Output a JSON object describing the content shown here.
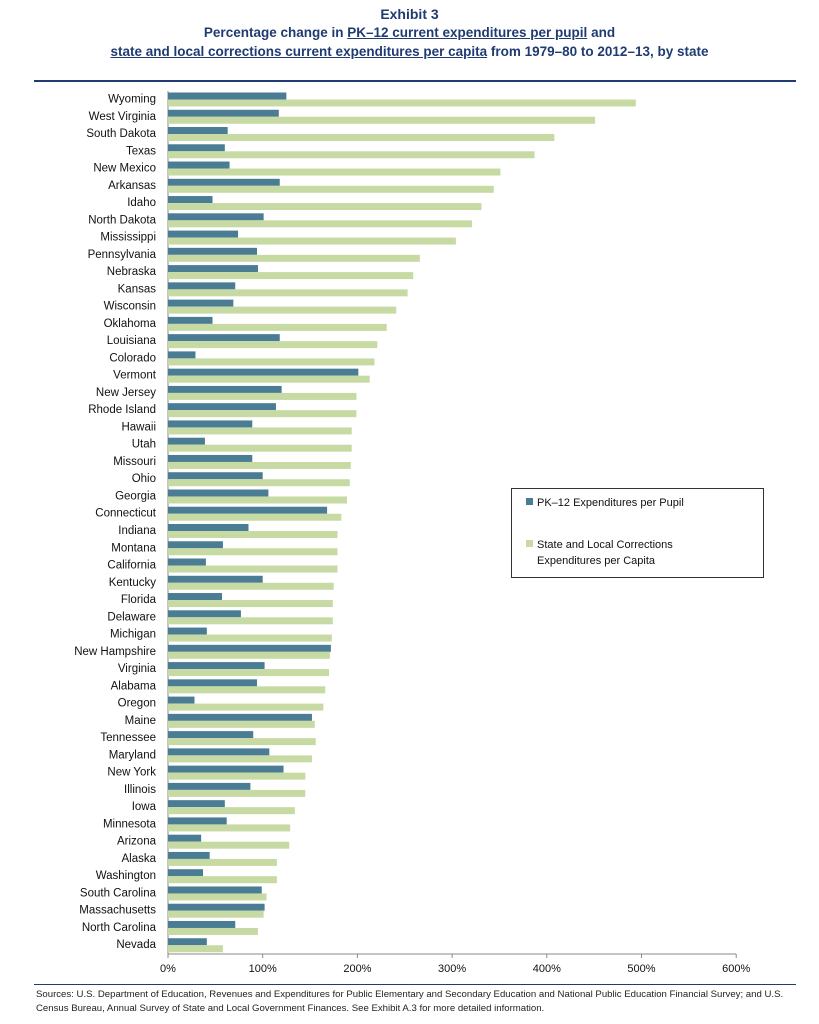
{
  "header": {
    "exhibit": "Exhibit 3",
    "line1_pre": "Percentage change in ",
    "line1_link": "PK–12 current expenditures per pupil",
    "line1_post": " and",
    "line2_link": "state and local corrections current expenditures per capita",
    "line2_post": " from 1979–80 to 2012–13, by state"
  },
  "colors": {
    "pk12": "#4a7c93",
    "corrections": "#c8daa4",
    "accent": "#1f3b72"
  },
  "legend": {
    "pk12_label": "PK–12 Expenditures per Pupil",
    "corr_label_line1": "State and Local Corrections",
    "corr_label_line2": "Expenditures per Capita"
  },
  "sources": "Sources: U.S. Department of Education, Revenues and Expenditures for Public Elementary and Secondary Education and National Public Education Financial Survey; and U.S. Census Bureau, Annual Survey of State and Local Government Finances. See Exhibit A.3 for more detailed information.",
  "chart_data": {
    "type": "bar",
    "orientation": "horizontal",
    "title": "Percentage change in PK–12 current expenditures per pupil and state and local corrections current expenditures per capita from 1979–80 to 2012–13, by state",
    "xlim": [
      0,
      600
    ],
    "x_ticks": [
      "0%",
      "100%",
      "200%",
      "300%",
      "400%",
      "500%",
      "600%"
    ],
    "x_tick_values": [
      0,
      100,
      200,
      300,
      400,
      500,
      600
    ],
    "categories": [
      "Wyoming",
      "West Virginia",
      "South Dakota",
      "Texas",
      "New Mexico",
      "Arkansas",
      "Idaho",
      "North Dakota",
      "Mississippi",
      "Pennsylvania",
      "Nebraska",
      "Kansas",
      "Wisconsin",
      "Oklahoma",
      "Louisiana",
      "Colorado",
      "Vermont",
      "New Jersey",
      "Rhode Island",
      "Hawaii",
      "Utah",
      "Missouri",
      "Ohio",
      "Georgia",
      "Connecticut",
      "Indiana",
      "Montana",
      "California",
      "Kentucky",
      "Florida",
      "Delaware",
      "Michigan",
      "New Hampshire",
      "Virginia",
      "Alabama",
      "Oregon",
      "Maine",
      "Tennessee",
      "Maryland",
      "New York",
      "Illinois",
      "Iowa",
      "Minnesota",
      "Arizona",
      "Alaska",
      "Washington",
      "South Carolina",
      "Massachusetts",
      "North Carolina",
      "Nevada"
    ],
    "series": [
      {
        "name": "PK–12 Expenditures per Pupil",
        "values": [
          125,
          117,
          63,
          60,
          65,
          118,
          47,
          101,
          74,
          94,
          95,
          71,
          69,
          47,
          118,
          29,
          201,
          120,
          114,
          89,
          39,
          89,
          100,
          106,
          168,
          85,
          58,
          40,
          100,
          57,
          77,
          41,
          172,
          102,
          94,
          28,
          152,
          90,
          107,
          122,
          87,
          60,
          62,
          35,
          44,
          37,
          99,
          102,
          71,
          41
        ]
      },
      {
        "name": "State and Local Corrections Expenditures per Capita",
        "values": [
          494,
          451,
          408,
          387,
          351,
          344,
          331,
          321,
          304,
          266,
          259,
          253,
          241,
          231,
          221,
          218,
          213,
          199,
          199,
          194,
          194,
          193,
          192,
          189,
          183,
          179,
          179,
          179,
          175,
          174,
          174,
          173,
          171,
          170,
          166,
          164,
          155,
          156,
          152,
          145,
          145,
          134,
          129,
          128,
          115,
          115,
          104,
          101,
          95,
          58
        ]
      }
    ],
    "legend_position": "right-middle"
  }
}
